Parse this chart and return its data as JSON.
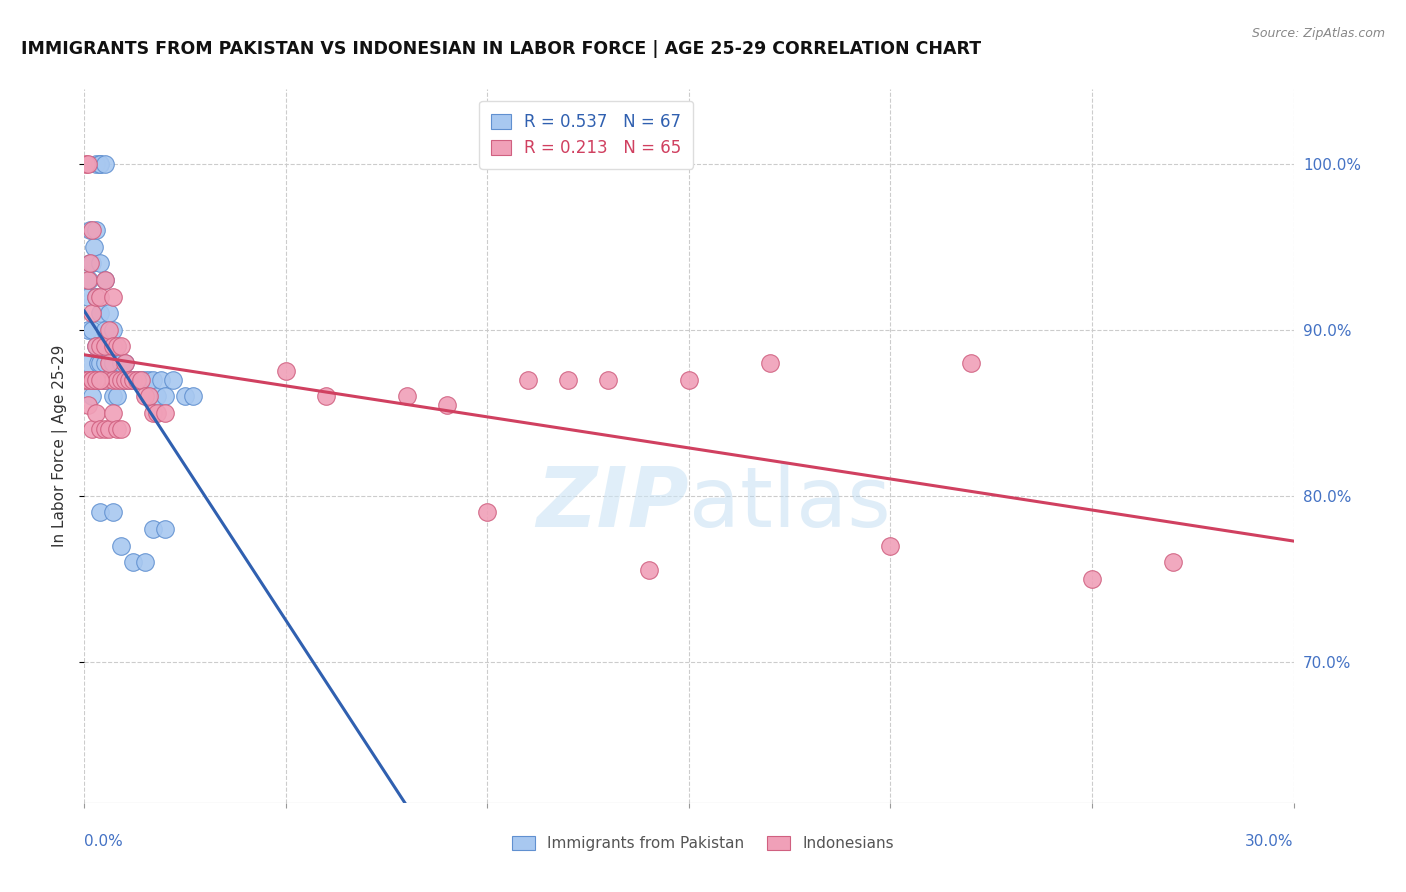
{
  "title": "IMMIGRANTS FROM PAKISTAN VS INDONESIAN IN LABOR FORCE | AGE 25-29 CORRELATION CHART",
  "source": "Source: ZipAtlas.com",
  "ylabel": "In Labor Force | Age 25-29",
  "xmin": 0.0,
  "xmax": 0.3,
  "ymin": 0.615,
  "ymax": 1.045,
  "blue_R": 0.537,
  "blue_N": 67,
  "pink_R": 0.213,
  "pink_N": 65,
  "blue_color": "#A8C8F0",
  "pink_color": "#F0A0B8",
  "blue_edge_color": "#6090D0",
  "pink_edge_color": "#D06080",
  "blue_line_color": "#3060B0",
  "pink_line_color": "#D04060",
  "legend_label_blue": "Immigrants from Pakistan",
  "legend_label_pink": "Indonesians",
  "watermark": "ZIPatlas",
  "right_yticks": [
    0.7,
    0.8,
    0.9,
    1.0
  ],
  "right_ylabels": [
    "70.0%",
    "80.0%",
    "90.0%",
    "100.0%"
  ]
}
